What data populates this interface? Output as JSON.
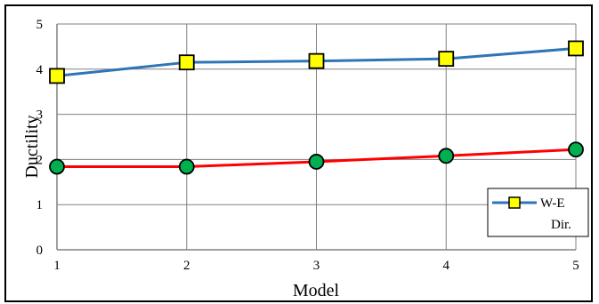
{
  "chart_data": {
    "type": "line",
    "title": "",
    "xlabel": "Model",
    "ylabel": "Ductility",
    "x": [
      1,
      2,
      3,
      4,
      5
    ],
    "xlim": [
      1,
      5
    ],
    "ylim": [
      0,
      5
    ],
    "x_ticks": [
      "1",
      "2",
      "3",
      "4",
      "5"
    ],
    "y_ticks": [
      "0",
      "1",
      "2",
      "3",
      "4",
      "5"
    ],
    "grid": true,
    "legend_position": "bottom-right",
    "series": [
      {
        "name": "W-E Dir.",
        "values": [
          3.85,
          4.15,
          4.18,
          4.23,
          4.46
        ],
        "line_color": "#2e75b6",
        "marker": "square",
        "marker_color": "#ffff00"
      },
      {
        "values": [
          1.84,
          1.84,
          1.95,
          2.08,
          2.22
        ],
        "line_color": "#ff0000",
        "marker": "circle",
        "marker_color": "#00b050"
      }
    ]
  }
}
